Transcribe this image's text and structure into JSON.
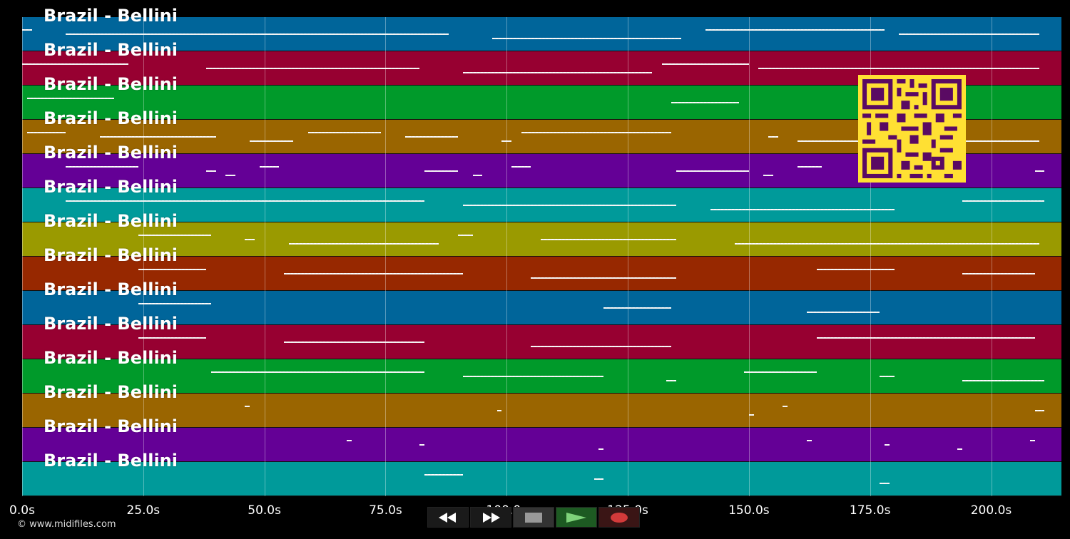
{
  "tracks": [
    {
      "label": "Brazil - Bellini",
      "color": "#00659a"
    },
    {
      "label": "Brazil - Bellini",
      "color": "#970031"
    },
    {
      "label": "Brazil - Bellini",
      "color": "#009a2a"
    },
    {
      "label": "Brazil - Bellini",
      "color": "#9a6500"
    },
    {
      "label": "Brazil - Bellini",
      "color": "#640096"
    },
    {
      "label": "Brazil - Bellini",
      "color": "#009a9a"
    },
    {
      "label": "Brazil - Bellini",
      "color": "#9a9a00"
    },
    {
      "label": "Brazil - Bellini",
      "color": "#972800"
    },
    {
      "label": "Brazil - Bellini",
      "color": "#00659a"
    },
    {
      "label": "Brazil - Bellini",
      "color": "#970031"
    },
    {
      "label": "Brazil - Bellini",
      "color": "#009a2a"
    },
    {
      "label": "Brazil - Bellini",
      "color": "#9a6500"
    },
    {
      "label": "Brazil - Bellini",
      "color": "#640096"
    },
    {
      "label": "Brazil - Bellini",
      "color": "#009a9a"
    }
  ],
  "time_axis": {
    "ticks": [
      "0.0s",
      "25.0s",
      "50.0s",
      "75.0s",
      "100.0s",
      "125.0s",
      "150.0s",
      "175.0s",
      "200.0s"
    ],
    "tick_values": [
      0,
      25,
      50,
      75,
      100,
      125,
      150,
      175,
      200
    ],
    "max_seconds": 214.5
  },
  "copyright": "© www.midifiles.com",
  "transport": {
    "buttons": [
      {
        "name": "rewind-button",
        "icon": "rewind-icon"
      },
      {
        "name": "fast-forward-button",
        "icon": "fast-forward-icon"
      },
      {
        "name": "stop-button",
        "icon": "stop-icon"
      },
      {
        "name": "play-button",
        "icon": "play-icon"
      },
      {
        "name": "record-button",
        "icon": "record-icon"
      }
    ]
  },
  "qr_code": {
    "icon": "qr-code-icon",
    "fg": "#5a0a63",
    "bg": "#ffe033"
  },
  "note_segments": [
    [
      [
        0,
        2
      ],
      [
        9,
        88
      ],
      [
        97,
        136
      ],
      [
        141,
        178
      ],
      [
        181,
        210
      ]
    ],
    [
      [
        0,
        22
      ],
      [
        38,
        82
      ],
      [
        91,
        130
      ],
      [
        132,
        150
      ],
      [
        152,
        210
      ]
    ],
    [
      [
        1,
        19
      ],
      [
        134,
        148
      ]
    ],
    [
      [
        1,
        9
      ],
      [
        16,
        40
      ],
      [
        47,
        56
      ],
      [
        59,
        74
      ],
      [
        79,
        90
      ],
      [
        99,
        101
      ],
      [
        103,
        134
      ],
      [
        154,
        156
      ],
      [
        160,
        210
      ]
    ],
    [
      [
        9,
        24
      ],
      [
        38,
        40
      ],
      [
        42,
        44
      ],
      [
        49,
        53
      ],
      [
        83,
        90
      ],
      [
        93,
        95
      ],
      [
        101,
        105
      ],
      [
        135,
        150
      ],
      [
        153,
        155
      ],
      [
        160,
        165
      ],
      [
        209,
        211
      ]
    ],
    [
      [
        9,
        83
      ],
      [
        91,
        135
      ],
      [
        142,
        180
      ],
      [
        194,
        211
      ]
    ],
    [
      [
        24,
        39
      ],
      [
        46,
        48
      ],
      [
        55,
        86
      ],
      [
        90,
        93
      ],
      [
        107,
        135
      ],
      [
        147,
        210
      ]
    ],
    [
      [
        24,
        38
      ],
      [
        54,
        91
      ],
      [
        105,
        135
      ],
      [
        164,
        180
      ],
      [
        194,
        209
      ]
    ],
    [
      [
        24,
        39
      ],
      [
        120,
        134
      ],
      [
        162,
        177
      ]
    ],
    [
      [
        24,
        38
      ],
      [
        54,
        83
      ],
      [
        105,
        134
      ],
      [
        164,
        209
      ]
    ],
    [
      [
        39,
        83
      ],
      [
        91,
        120
      ],
      [
        133,
        135
      ],
      [
        149,
        164
      ],
      [
        177,
        180
      ],
      [
        194,
        211
      ]
    ],
    [
      [
        46,
        47
      ],
      [
        98,
        99
      ],
      [
        150,
        151
      ],
      [
        157,
        158
      ],
      [
        209,
        211
      ]
    ],
    [
      [
        67,
        68
      ],
      [
        82,
        83
      ],
      [
        119,
        120
      ],
      [
        162,
        163
      ],
      [
        178,
        179
      ],
      [
        193,
        194
      ],
      [
        208,
        209
      ]
    ],
    [
      [
        83,
        91
      ],
      [
        118,
        120
      ],
      [
        177,
        179
      ]
    ]
  ]
}
